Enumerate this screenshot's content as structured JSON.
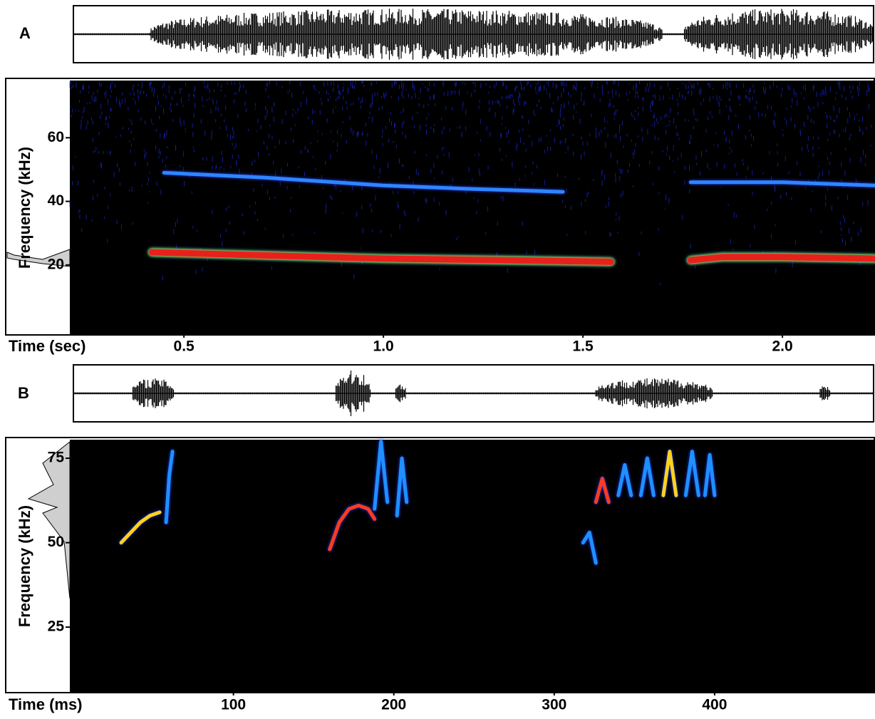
{
  "chart_data": [
    {
      "type": "spectrogram",
      "panel_label": "A",
      "x_label": "Time (sec)",
      "y_label": "Frequency (kHz)",
      "xlim": [
        0.214,
        2.232
      ],
      "xticks": [
        0.5,
        {
          "value": 1,
          "label": "1.0"
        },
        1.5,
        {
          "value": 2,
          "label": "2.0"
        }
      ],
      "ylim": [
        -2,
        78
      ],
      "yticks": [
        20,
        40,
        60
      ],
      "series": [
        {
          "color": "#e8201c",
          "x": [
            0.42,
            0.7,
            1.0,
            1.3,
            1.57
          ],
          "values": [
            24,
            23,
            22,
            21.5,
            21
          ]
        },
        {
          "color": "#e8201c",
          "x": [
            1.77,
            1.85,
            2.0,
            2.232
          ],
          "values": [
            21.5,
            22.5,
            22.5,
            22
          ]
        },
        {
          "color": "#2f86ff",
          "x": [
            0.45,
            0.7,
            1.0,
            1.2,
            1.45
          ],
          "values": [
            49,
            47.5,
            45,
            44,
            43
          ]
        },
        {
          "color": "#2f86ff",
          "x": [
            1.77,
            2.0,
            2.232
          ],
          "values": [
            46,
            46,
            45
          ]
        }
      ]
    },
    {
      "type": "spectrogram",
      "panel_label": "B",
      "x_label": "Time (ms)",
      "y_label": "Frequency (kHz)",
      "xlim": [
        -2,
        500
      ],
      "xticks": [
        100,
        200,
        300,
        400
      ],
      "ylim": [
        5.6,
        80.5
      ],
      "yticks": [
        25,
        50,
        75
      ],
      "series": [
        {
          "color": "#ffd21e",
          "x": [
            30,
            36,
            42,
            48,
            54
          ],
          "values": [
            50,
            53,
            56,
            58,
            59
          ]
        },
        {
          "color": "#1e90ff",
          "x": [
            58,
            60,
            62
          ],
          "values": [
            56,
            70,
            77
          ]
        },
        {
          "color": "#ff3a1e",
          "x": [
            160,
            166,
            172,
            178,
            184,
            188
          ],
          "values": [
            48,
            56,
            60,
            61,
            60,
            57
          ]
        },
        {
          "color": "#1e90ff",
          "x": [
            188,
            192,
            196
          ],
          "values": [
            60,
            80,
            62
          ]
        },
        {
          "color": "#1e90ff",
          "x": [
            202,
            205,
            208
          ],
          "values": [
            58,
            75,
            62
          ]
        },
        {
          "color": "#ff3a1e",
          "x": [
            326,
            330,
            334
          ],
          "values": [
            62,
            69,
            62
          ]
        },
        {
          "color": "#1e90ff",
          "x": [
            340,
            344,
            348
          ],
          "values": [
            64,
            73,
            64
          ]
        },
        {
          "color": "#1e90ff",
          "x": [
            354,
            358,
            362
          ],
          "values": [
            64,
            75,
            64
          ]
        },
        {
          "color": "#ffd21e",
          "x": [
            368,
            372,
            376
          ],
          "values": [
            64,
            77,
            64
          ]
        },
        {
          "color": "#1e90ff",
          "x": [
            382,
            386,
            390
          ],
          "values": [
            64,
            77,
            64
          ]
        },
        {
          "color": "#1e90ff",
          "x": [
            394,
            397,
            400
          ],
          "values": [
            64,
            76,
            64
          ]
        },
        {
          "color": "#1e90ff",
          "x": [
            318,
            322,
            326
          ],
          "values": [
            50,
            53,
            44
          ]
        }
      ]
    }
  ]
}
